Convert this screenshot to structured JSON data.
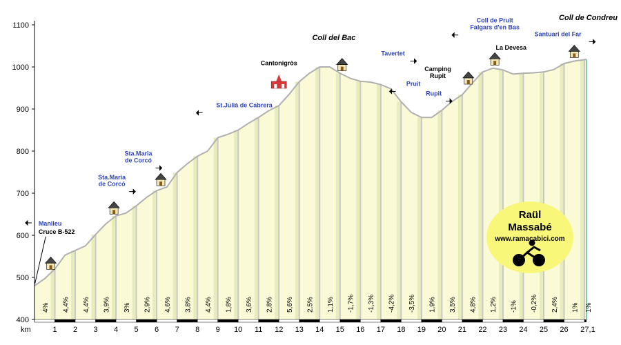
{
  "chart_data": {
    "type": "area",
    "title": "Coll de Condreu",
    "xlabel": "km",
    "ylabel": "",
    "xlim": [
      0,
      27.1
    ],
    "ylim": [
      400,
      1100
    ],
    "y_ticks": [
      400,
      500,
      600,
      700,
      800,
      900,
      1000,
      1100
    ],
    "x_tick_labels": [
      "km",
      "1",
      "2",
      "3",
      "4",
      "5",
      "6",
      "7",
      "8",
      "9",
      "10",
      "11",
      "12",
      "13",
      "14",
      "15",
      "16",
      "17",
      "18",
      "19",
      "20",
      "21",
      "22",
      "23",
      "24",
      "25",
      "26",
      "27,1"
    ],
    "profile": [
      {
        "km": 0,
        "alt": 480
      },
      {
        "km": 0.5,
        "alt": 497
      },
      {
        "km": 1,
        "alt": 520
      },
      {
        "km": 1.5,
        "alt": 553
      },
      {
        "km": 2,
        "alt": 564
      },
      {
        "km": 2.5,
        "alt": 575
      },
      {
        "km": 3,
        "alt": 602
      },
      {
        "km": 3.5,
        "alt": 627
      },
      {
        "km": 4,
        "alt": 646
      },
      {
        "km": 4.5,
        "alt": 653
      },
      {
        "km": 5,
        "alt": 670
      },
      {
        "km": 5.5,
        "alt": 690
      },
      {
        "km": 6,
        "alt": 706
      },
      {
        "km": 6.5,
        "alt": 715
      },
      {
        "km": 7,
        "alt": 749
      },
      {
        "km": 7.5,
        "alt": 770
      },
      {
        "km": 8,
        "alt": 788
      },
      {
        "km": 8.5,
        "alt": 800
      },
      {
        "km": 9,
        "alt": 832
      },
      {
        "km": 9.5,
        "alt": 840
      },
      {
        "km": 10,
        "alt": 850
      },
      {
        "km": 10.5,
        "alt": 866
      },
      {
        "km": 11,
        "alt": 880
      },
      {
        "km": 11.5,
        "alt": 896
      },
      {
        "km": 12,
        "alt": 908
      },
      {
        "km": 12.5,
        "alt": 935
      },
      {
        "km": 13,
        "alt": 965
      },
      {
        "km": 13.5,
        "alt": 985
      },
      {
        "km": 14,
        "alt": 1000
      },
      {
        "km": 14.5,
        "alt": 1000
      },
      {
        "km": 15,
        "alt": 985
      },
      {
        "km": 15.5,
        "alt": 973
      },
      {
        "km": 16,
        "alt": 966
      },
      {
        "km": 16.5,
        "alt": 964
      },
      {
        "km": 17,
        "alt": 958
      },
      {
        "km": 17.5,
        "alt": 948
      },
      {
        "km": 18,
        "alt": 917
      },
      {
        "km": 18.5,
        "alt": 892
      },
      {
        "km": 19,
        "alt": 880
      },
      {
        "km": 19.5,
        "alt": 880
      },
      {
        "km": 20,
        "alt": 897
      },
      {
        "km": 20.5,
        "alt": 918
      },
      {
        "km": 21,
        "alt": 934
      },
      {
        "km": 21.5,
        "alt": 962
      },
      {
        "km": 22,
        "alt": 988
      },
      {
        "km": 22.5,
        "alt": 997
      },
      {
        "km": 23,
        "alt": 993
      },
      {
        "km": 23.5,
        "alt": 983
      },
      {
        "km": 24,
        "alt": 985
      },
      {
        "km": 24.5,
        "alt": 986
      },
      {
        "km": 25,
        "alt": 988
      },
      {
        "km": 25.5,
        "alt": 994
      },
      {
        "km": 26,
        "alt": 1008
      },
      {
        "km": 26.5,
        "alt": 1014
      },
      {
        "km": 27.1,
        "alt": 1018
      }
    ],
    "gradients": [
      "4%",
      "4,4%",
      "4,4%",
      "3,9%",
      "3%",
      "2,9%",
      "4,6%",
      "3,8%",
      "4,4%",
      "1,8%",
      "3,6%",
      "2,8%",
      "5,6%",
      "2,5%",
      "1,1%",
      "-1,7%",
      "-1,3%",
      "-4,2%",
      "-3,5%",
      "1,9%",
      "3,5%",
      "4,8%",
      "1,2%",
      "-1%",
      "-0,2%",
      "2,4%",
      "1%",
      "1%"
    ],
    "annotations": [
      {
        "text": "Manlleu",
        "km": 0.2,
        "alt": 623,
        "color": "blue",
        "arrow": "left"
      },
      {
        "text": "Cruce B-522",
        "km": 0.2,
        "alt": 603,
        "color": "black",
        "arrow": "none"
      },
      {
        "text": "Sta.Maria",
        "km": 3.8,
        "alt": 733,
        "color": "blue",
        "arrow": "none"
      },
      {
        "text": "de Corcó",
        "km": 3.8,
        "alt": 717,
        "color": "blue",
        "arrow": "right"
      },
      {
        "text": "Sta.Maria",
        "km": 5.1,
        "alt": 789,
        "color": "blue",
        "arrow": "none"
      },
      {
        "text": "de Corcó",
        "km": 5.1,
        "alt": 773,
        "color": "blue",
        "arrow": "right"
      },
      {
        "text": "St.Julià de Cabrera",
        "km": 10.3,
        "alt": 904,
        "color": "blue",
        "arrow": "left"
      },
      {
        "text": "Cantonigròs",
        "km": 12.0,
        "alt": 1004,
        "color": "black",
        "arrow": "none"
      },
      {
        "text": "Coll del Bac",
        "km": 14.7,
        "alt": 1064,
        "color": "title",
        "arrow": "none"
      },
      {
        "text": "Tavertet",
        "km": 17.6,
        "alt": 1027,
        "color": "blue",
        "arrow": "right"
      },
      {
        "text": "Pruit",
        "km": 18.6,
        "alt": 955,
        "color": "blue",
        "arrow": "left"
      },
      {
        "text": "Camping",
        "km": 19.8,
        "alt": 990,
        "color": "black",
        "arrow": "none"
      },
      {
        "text": "Rupit",
        "km": 19.8,
        "alt": 974,
        "color": "black",
        "arrow": "none"
      },
      {
        "text": "Rupit",
        "km": 19.6,
        "alt": 932,
        "color": "blue",
        "arrow": "right"
      },
      {
        "text": "Coll de Pruit",
        "km": 22.6,
        "alt": 1106,
        "color": "blue",
        "arrow": "none"
      },
      {
        "text": "Falgars d'en Bas",
        "km": 22.6,
        "alt": 1089,
        "color": "blue",
        "arrow": "left"
      },
      {
        "text": "La Devesa",
        "km": 23.4,
        "alt": 1041,
        "color": "black",
        "arrow": "none"
      },
      {
        "text": "Santuari del Far",
        "km": 25.7,
        "alt": 1073,
        "color": "blue",
        "arrow": "right"
      }
    ],
    "houses_km": [
      0.8,
      3.9,
      6.2,
      15.1,
      21.3,
      22.6,
      26.5
    ],
    "church_km": 12.1
  },
  "branding": {
    "author_first": "Raül",
    "author_last": "Massabé",
    "website": "www.ramacabici.com"
  },
  "colors": {
    "fill": "#fafbd6",
    "shadow": "#e8ebbc",
    "profile_line": "#b0b0b0",
    "grid": "#c8c8c8",
    "badge": "#f9f77a",
    "accent_blue": "#2f45b8"
  }
}
